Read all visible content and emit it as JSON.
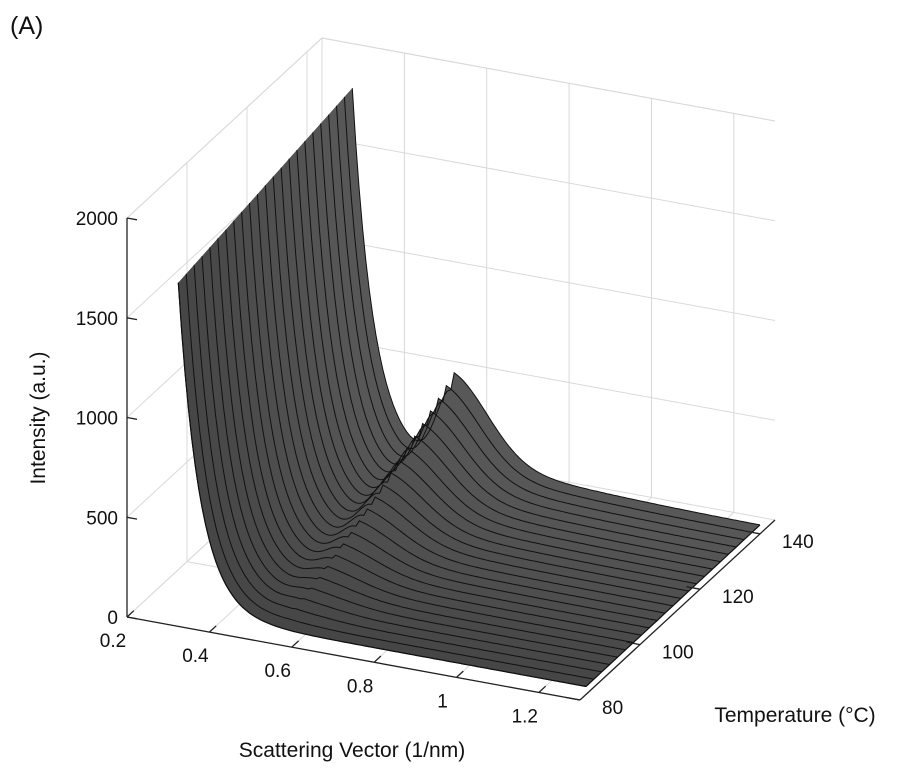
{
  "panel_label": "(A)",
  "chart_data": {
    "type": "surface",
    "title": "",
    "xlabel": "Scattering Vector (1/nm)",
    "ylabel": "Temperature (°C)",
    "zlabel": "Intensity (a.u.)",
    "xlim": [
      0.2,
      1.3
    ],
    "ylim": [
      80,
      145
    ],
    "zlim": [
      0,
      2000
    ],
    "x_ticks": [
      "0.2",
      "0.4",
      "0.6",
      "0.8",
      "1",
      "1.2"
    ],
    "y_ticks": [
      "80",
      "100",
      "120",
      "140"
    ],
    "z_ticks": [
      "0",
      "500",
      "1000",
      "1500",
      "2000"
    ],
    "grid": true,
    "surface_color": "#4a4a4a",
    "edge_color": "#111111",
    "x_range": [
      0.31,
      1.3
    ],
    "y_range": [
      82,
      140
    ],
    "n_temperature_lines": 23,
    "low_q_intensity_at_min_q": {
      "temperature": [
        82,
        140
      ],
      "intensity": [
        1650,
        1820
      ]
    },
    "peak": {
      "q": 0.55,
      "intensity_at_min_temperature": 0,
      "intensity_at_max_temperature": 380
    },
    "high_q_intensity": 40
  }
}
